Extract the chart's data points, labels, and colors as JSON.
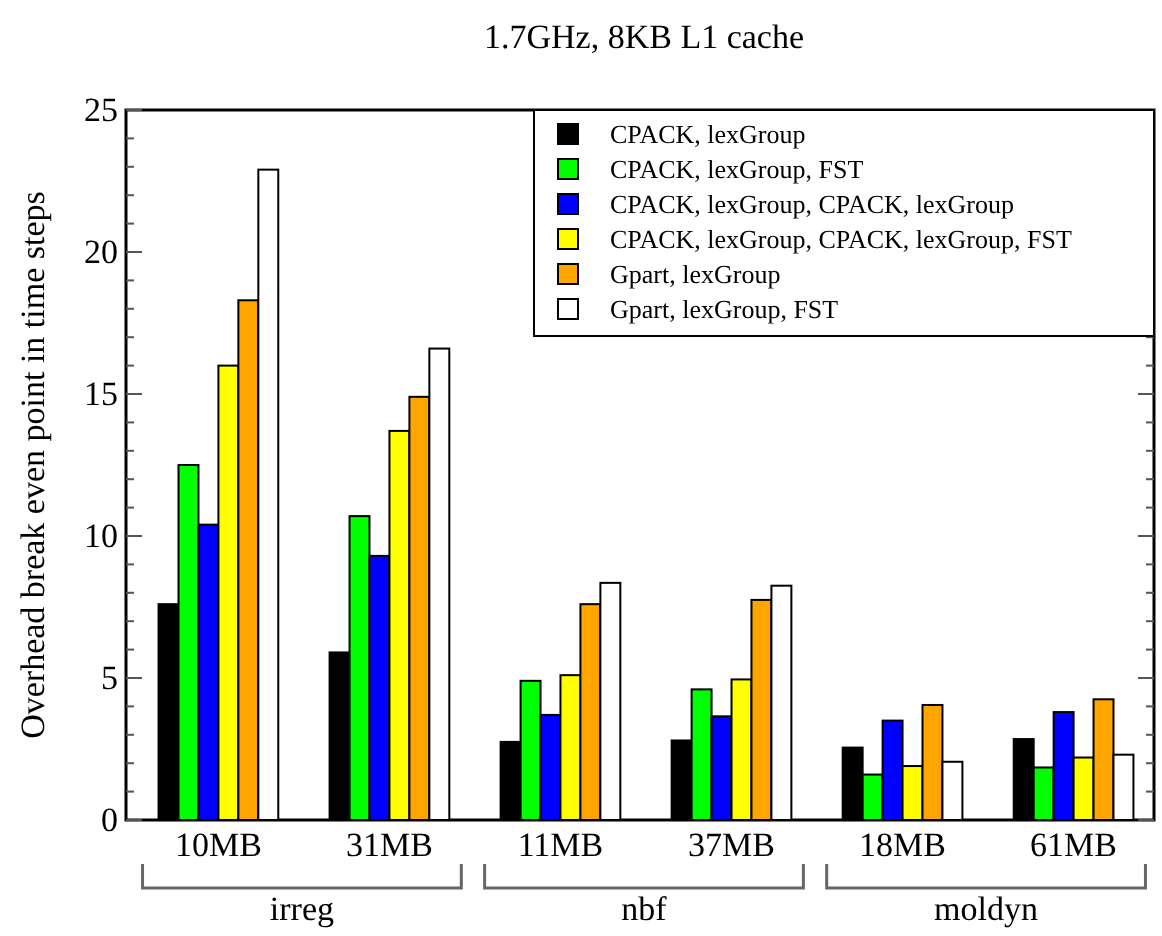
{
  "chart_data": {
    "type": "bar",
    "title": "1.7GHz, 8KB L1 cache",
    "ylabel": "Overhead break even point in time steps",
    "categories": [
      "10MB",
      "31MB",
      "11MB",
      "37MB",
      "18MB",
      "61MB"
    ],
    "series": [
      {
        "name": "CPACK, lexGroup",
        "color": "#000000",
        "values": [
          7.6,
          5.9,
          2.75,
          2.8,
          2.55,
          2.85
        ]
      },
      {
        "name": "CPACK, lexGroup, FST",
        "color": "#00ff00",
        "values": [
          12.5,
          10.7,
          4.9,
          4.6,
          1.6,
          1.85
        ]
      },
      {
        "name": "CPACK, lexGroup, CPACK, lexGroup",
        "color": "#0000ff",
        "values": [
          10.4,
          9.3,
          3.7,
          3.65,
          3.5,
          3.8
        ]
      },
      {
        "name": "CPACK, lexGroup, CPACK, lexGroup, FST",
        "color": "#ffff00",
        "values": [
          16.0,
          13.7,
          5.1,
          4.95,
          1.9,
          2.2
        ]
      },
      {
        "name": "Gpart, lexGroup",
        "color": "#ffa500",
        "values": [
          18.3,
          14.9,
          7.6,
          7.75,
          4.05,
          4.25
        ]
      },
      {
        "name": "Gpart, lexGroup, FST",
        "color": "#ffffff",
        "values": [
          22.9,
          16.6,
          8.35,
          8.25,
          2.05,
          2.3
        ]
      }
    ],
    "ylim": [
      0,
      25
    ],
    "yticks": [
      0,
      {
        "value": 1,
        "label": null
      },
      {
        "value": 2,
        "label": null
      },
      {
        "value": 3,
        "label": null
      },
      {
        "value": 4,
        "label": null
      },
      5,
      {
        "value": 6,
        "label": null
      },
      {
        "value": 7,
        "label": null
      },
      {
        "value": 8,
        "label": null
      },
      {
        "value": 9,
        "label": null
      },
      10,
      {
        "value": 11,
        "label": null
      },
      {
        "value": 12,
        "label": null
      },
      {
        "value": 13,
        "label": null
      },
      {
        "value": 14,
        "label": null
      },
      15,
      {
        "value": 16,
        "label": null
      },
      {
        "value": 17,
        "label": null
      },
      {
        "value": 18,
        "label": null
      },
      {
        "value": 19,
        "label": null
      },
      20,
      {
        "value": 21,
        "label": null
      },
      {
        "value": 22,
        "label": null
      },
      {
        "value": 23,
        "label": null
      },
      {
        "value": 24,
        "label": null
      },
      25
    ],
    "annotations": [
      "irreg",
      "nbf",
      "moldyn"
    ],
    "legend": "top right",
    "grid": false
  }
}
